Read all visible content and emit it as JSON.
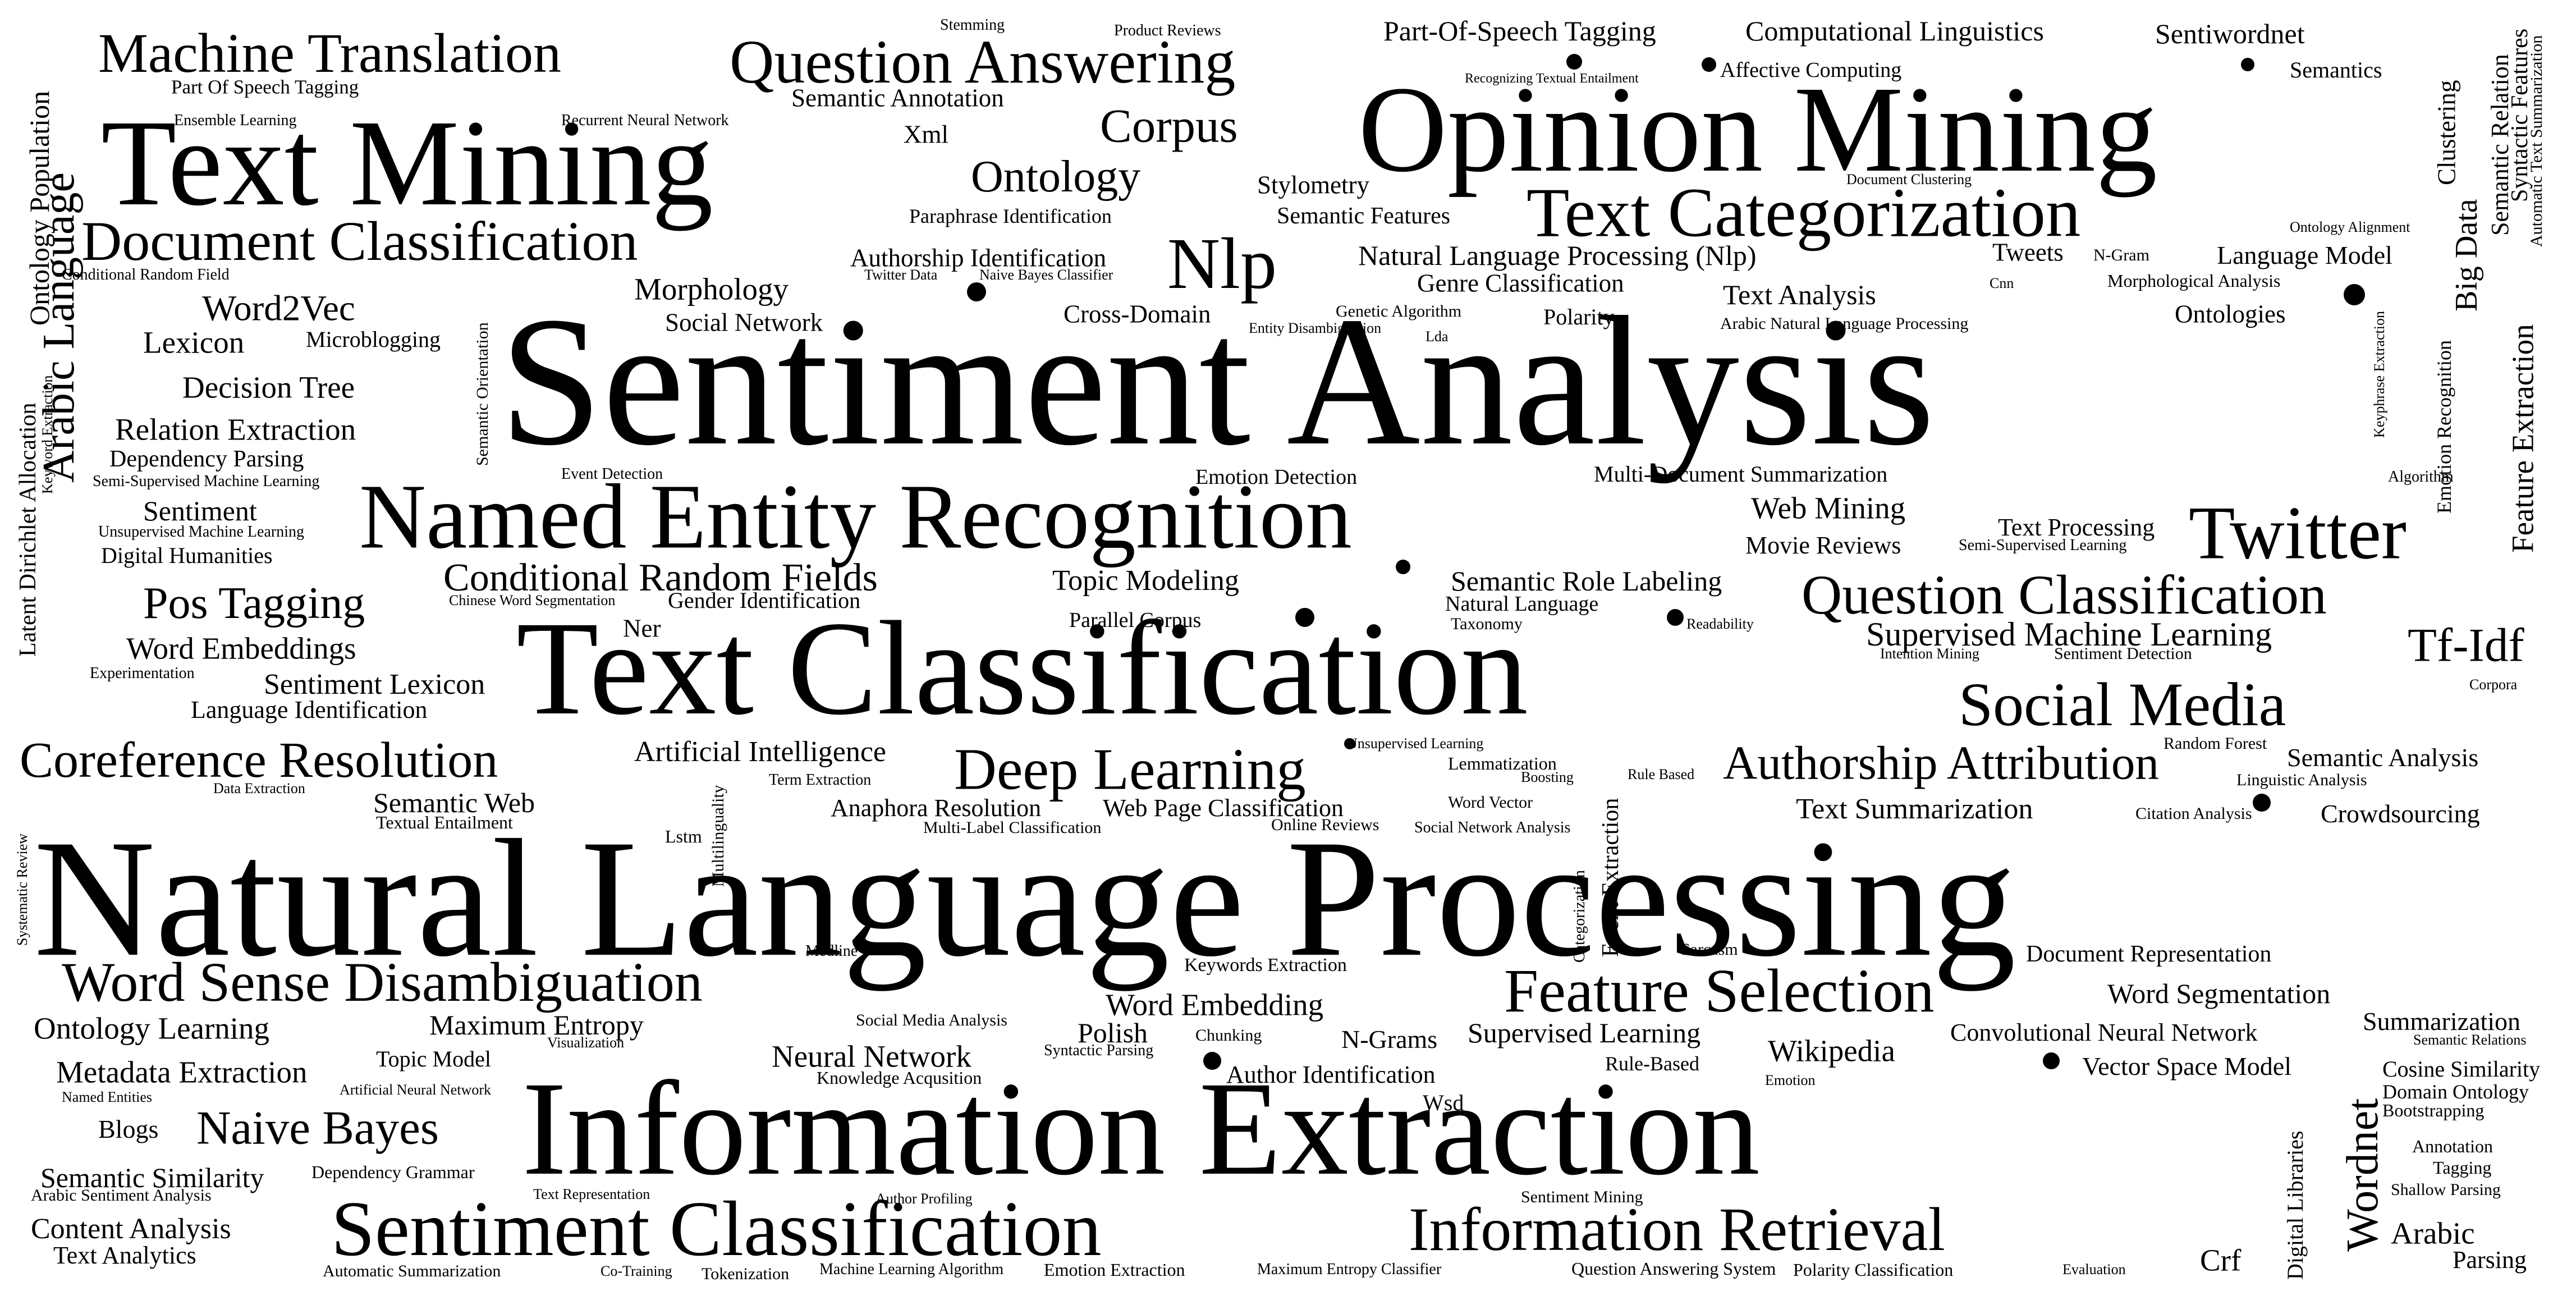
{
  "colors": {
    "background": "#ffffff",
    "text": "#000000"
  },
  "words": [
    "Natural Language Processing",
    "Sentiment Analysis",
    "Information Extraction",
    "Text Classification",
    "Opinion Mining",
    "Text Mining",
    "Named Entity Recognition",
    "Sentiment Classification",
    "Text Categorization",
    "Twitter",
    "Information Retrieval",
    "Machine Translation",
    "Question Answering",
    "Document Classification",
    "Word Sense Disambiguation",
    "Feature Selection",
    "Nlp",
    "Deep Learning",
    "Question Classification",
    "Social Media",
    "Coreference Resolution",
    "Authorship Attribution",
    "Naive Bayes",
    "Pos Tagging",
    "Conditional Random Fields",
    "Corpus",
    "Ontology",
    "Tf-Idf",
    "Arabic Language",
    "Word2Vec",
    "Wordnet",
    "Part-Of-Speech Tagging",
    "Computational Linguistics",
    "Sentiwordnet",
    "Semantic Annotation",
    "Part Of Speech Tagging",
    "Ontology Population",
    "Stemming",
    "Product Reviews",
    "Recognizing Textual Entailment",
    "Affective Computing",
    "Semantics",
    "Clustering",
    "Semantic Relation",
    "Syntactic Features",
    "Automatic Text Summarization",
    "Ensemble Learning",
    "Recurrent Neural Network",
    "Xml",
    "Stylometry",
    "Document Clustering",
    "Paraphrase Identification",
    "Semantic Features",
    "Ontology Alignment",
    "Big Data",
    "Conditional Random Field",
    "Authorship Identification",
    "Twitter Data",
    "Naive Bayes Classifier",
    "Natural Language Processing (Nlp)",
    "Tweets",
    "N-Gram",
    "Language Model",
    "Morphology",
    "Genre Classification",
    "Cnn",
    "Morphological Analysis",
    "Lexicon",
    "Microblogging",
    "Social Network",
    "Cross-Domain",
    "Genetic Algorithm",
    "Polarity",
    "Text Analysis",
    "Ontologies",
    "Emotion Recognition",
    "Feature Extraction",
    "Latent Dirichlet Allocation",
    "Keyword Extraction",
    "Semantic Orientation",
    "Entity Disambiguation",
    "Lda",
    "Arabic Natural Language Processing",
    "Keyphrase Extraction",
    "Decision Tree",
    "Relation Extraction",
    "Dependency Parsing",
    "Semi-Supervised Machine Learning",
    "Event Detection",
    "Emotion Detection",
    "Multi-Document Summarization",
    "Algorithm",
    "Sentiment",
    "Web Mining",
    "Text Processing",
    "Unsupervised Machine Learning",
    "Digital Humanities",
    "Movie Reviews",
    "Semi-Supervised Learning",
    "Topic Modeling",
    "Semantic Role Labeling",
    "Chinese Word Segmentation",
    "Gender Identification",
    "Natural Language",
    "Word Embeddings",
    "Ner",
    "Parallel Corpus",
    "Taxonomy",
    "Readability",
    "Supervised Machine Learning",
    "Intention Mining",
    "Sentiment Detection",
    "Experimentation",
    "Sentiment Lexicon",
    "Corpora",
    "Language Identification",
    "Artificial Intelligence",
    "Unsupervised Learning",
    "Lemmatization",
    "Boosting",
    "Rule Based",
    "Semantic Analysis",
    "Random Forest",
    "Linguistic Analysis",
    "Data Extraction",
    "Term Extraction",
    "Semantic Web",
    "Textual Entailment",
    "Anaphora Resolution",
    "Web Page Classification",
    "Word Vector",
    "Text Summarization",
    "Citation Analysis",
    "Crowdsourcing",
    "Systematic Review",
    "Multilinguality",
    "Lstm",
    "Multi-Label Classification",
    "Online Reviews",
    "Social Network Analysis",
    "Categorization",
    "Event Extraction",
    "Medline",
    "Keywords Extraction",
    "Sarcasm",
    "Document Representation",
    "Maximum Entropy",
    "Social Media Analysis",
    "Polish",
    "Word Embedding",
    "Word Segmentation",
    "Ontology Learning",
    "Visualization",
    "Chunking",
    "N-Grams",
    "Supervised Learning",
    "Convolutional Neural Network",
    "Summarization",
    "Semantic Relations",
    "Topic Model",
    "Neural Network",
    "Syntactic Parsing",
    "Wikipedia",
    "Metadata Extraction",
    "Knowledge Acqusition",
    "Author Identification",
    "Rule-Based",
    "Vector Space Model",
    "Cosine Similarity",
    "Named Entities",
    "Artificial Neural Network",
    "Wsd",
    "Emotion",
    "Domain Ontology",
    "Blogs",
    "Bootstrapping",
    "Semantic Similarity",
    "Dependency Grammar",
    "Annotation",
    "Tagging",
    "Arabic Sentiment Analysis",
    "Text Representation",
    "Author Profiling",
    "Sentiment Mining",
    "Shallow Parsing",
    "Digital Libraries",
    "Content Analysis",
    "Arabic",
    "Text Analytics",
    "Crf",
    "Parsing",
    "Automatic Summarization",
    "Co-Training",
    "Tokenization",
    "Machine Learning Algorithm",
    "Emotion Extraction",
    "Maximum Entropy Classifier",
    "Question Answering System",
    "Polarity Classification",
    "Evaluation"
  ]
}
